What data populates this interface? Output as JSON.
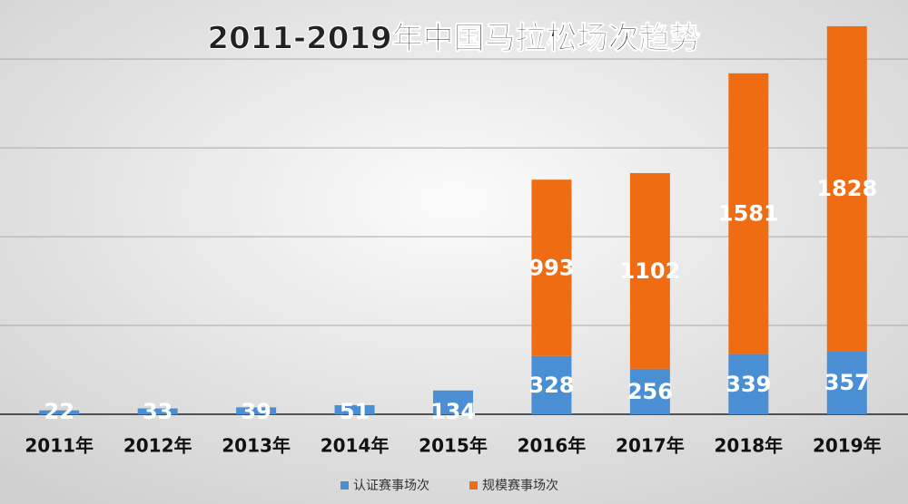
{
  "chart_data": {
    "type": "stacked_bar",
    "title": "2011-2019年中国马拉松场次趋势",
    "categories": [
      "2011年",
      "2012年",
      "2013年",
      "2014年",
      "2015年",
      "2016年",
      "2017年",
      "2018年",
      "2019年"
    ],
    "series": [
      {
        "name": "认证赛事场次",
        "color": "#4a8fd4",
        "values": [
          22,
          33,
          39,
          51,
          134,
          328,
          256,
          339,
          357
        ]
      },
      {
        "name": "规模赛事场次",
        "color": "#ef6c12",
        "values": [
          null,
          null,
          null,
          null,
          null,
          993,
          1102,
          1581,
          1828
        ]
      }
    ],
    "ylim": [
      0,
      2200
    ],
    "yticks": [
      0,
      500,
      1000,
      1500,
      2000
    ],
    "grid": true,
    "legend": "bottom"
  }
}
